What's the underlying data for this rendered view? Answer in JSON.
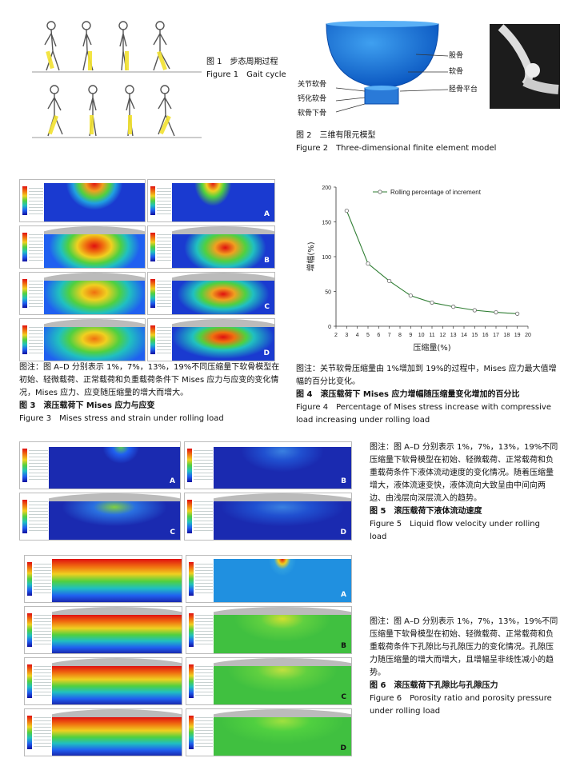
{
  "fig1": {
    "cn": "图 1　步态周期过程",
    "en": "Figure 1　Gait cycle"
  },
  "fig2": {
    "cn": "图 2　三维有限元模型",
    "en": "Figure 2　Three-dimensional finite element model",
    "labels": {
      "femur": "股骨",
      "cartilage": "软骨",
      "tibial_plateau": "胫骨平台",
      "articular_cartilage": "关节软骨",
      "calcified_cartilage": "钙化软骨",
      "subchondral_bone": "软骨下骨"
    }
  },
  "fig3": {
    "note": "图注：图 A–D 分别表示 1%，7%，13%，19%不同压缩量下软骨模型在初始、轻微载荷、正常载荷和负重载荷条件下 Mises 应力与应变的变化情况，Mises 应力、应变随压缩量的增大而增大。",
    "cn": "图 3　滚压载荷下 Mises 应力与应变",
    "en": "Figure 3　Mises stress and strain under rolling load",
    "panels": [
      "A",
      "B",
      "C",
      "D"
    ]
  },
  "fig4": {
    "note": "图注：关节软骨压缩量由 1%增加到 19%的过程中，Mises 应力最大值增幅的百分比变化。",
    "cn": "图 4　滚压载荷下 Mises 应力增幅随压缩量变化增加的百分比",
    "en": "Figure 4　Percentage of Mises stress increase with compressive load increasing under rolling load"
  },
  "fig5": {
    "note": "图注：图 A–D 分别表示 1%，7%，13%，19%不同压缩量下软骨模型在初始、轻微载荷、正常载荷和负重载荷条件下液体流动速度的变化情况。随着压缩量增大，液体流速变快，液体流向大致呈由中间向两边、由浅层向深层流入的趋势。",
    "cn": "图 5　滚压载荷下液体流动速度",
    "en": "Figure 5　Liquid flow velocity under rolling load",
    "panels": [
      "A",
      "B",
      "C",
      "D"
    ]
  },
  "fig6": {
    "note": "图注：图 A–D 分别表示 1%，7%，13%，19%不同压缩量下软骨模型在初始、轻微载荷、正常载荷和负重载荷条件下孔隙比与孔隙压力的变化情况。孔隙压力随压缩量的增大而增大，且增幅呈非线性减小的趋势。",
    "cn": "图 6　滚压载荷下孔隙比与孔隙压力",
    "en": "Figure 6　Porosity ratio and porosity pressure under rolling load",
    "panels": [
      "A",
      "B",
      "C",
      "D"
    ]
  },
  "chart_data": {
    "type": "line",
    "legend": "Rolling percentage of increment",
    "legend_position": "top",
    "xlabel": "压缩量(%)",
    "ylabel": "增幅(%)",
    "xlim": [
      2,
      20
    ],
    "ylim": [
      0,
      200
    ],
    "xticks": [
      2,
      3,
      4,
      5,
      6,
      7,
      8,
      9,
      10,
      11,
      12,
      13,
      14,
      15,
      16,
      17,
      18,
      19,
      20
    ],
    "yticks": [
      0,
      50,
      100,
      150,
      200
    ],
    "grid": false,
    "series": [
      {
        "name": "Rolling percentage of increment",
        "x": [
          3,
          5,
          7,
          9,
          11,
          13,
          15,
          17,
          19
        ],
        "y": [
          166,
          90,
          65,
          44,
          34,
          28,
          23,
          20,
          18
        ],
        "color": "#2e7d32"
      }
    ]
  }
}
